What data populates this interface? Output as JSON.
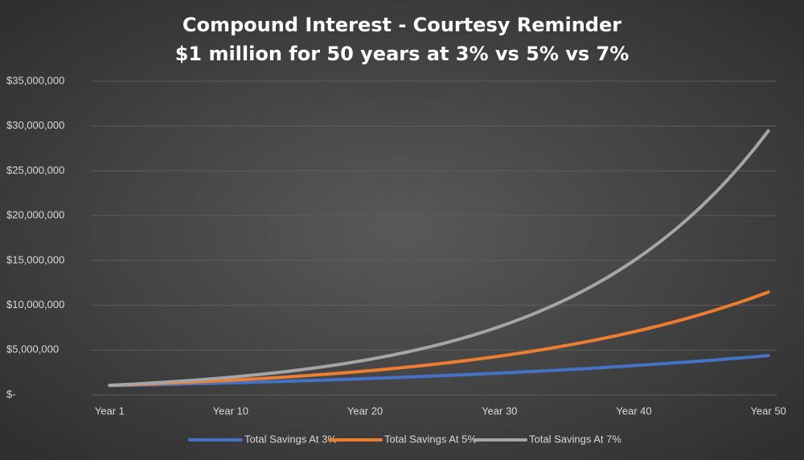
{
  "chart_data": {
    "type": "line",
    "title": "Compound Interest - Courtesy Reminder",
    "subtitle": "$1 million for 50 years at 3% vs 5% vs 7%",
    "categories": [
      "Year 1",
      null,
      null,
      null,
      null,
      null,
      null,
      null,
      null,
      "Year 10",
      null,
      null,
      null,
      null,
      null,
      null,
      null,
      null,
      null,
      "Year 20",
      null,
      null,
      null,
      null,
      null,
      null,
      null,
      null,
      null,
      "Year 30",
      null,
      null,
      null,
      null,
      null,
      null,
      null,
      null,
      null,
      "Year 40",
      null,
      null,
      null,
      null,
      null,
      null,
      null,
      null,
      null,
      "Year 50"
    ],
    "ylim": [
      0,
      35000000
    ],
    "yticks": [
      {
        "value": 0,
        "label": "$-"
      },
      {
        "value": 5000000,
        "label": "$5,000,000"
      },
      {
        "value": 10000000,
        "label": "$10,000,000"
      },
      {
        "value": 15000000,
        "label": "$15,000,000"
      },
      {
        "value": 20000000,
        "label": "$20,000,000"
      },
      {
        "value": 25000000,
        "label": "$25,000,000"
      },
      {
        "value": 30000000,
        "label": "$30,000,000"
      },
      {
        "value": 35000000,
        "label": "$35,000,000"
      }
    ],
    "grid": true,
    "legend": "bottom",
    "series": [
      {
        "name": "Total Savings At 3%",
        "color": "#4472c4",
        "values": [
          1030000,
          1060900,
          1092700,
          1125500,
          1159300,
          1194100,
          1229900,
          1266800,
          1304800,
          1343900,
          1384200,
          1425800,
          1468500,
          1512600,
          1558000,
          1604700,
          1652800,
          1702400,
          1753500,
          1806100,
          1860300,
          1916100,
          1973600,
          2032800,
          2093800,
          2156600,
          2221300,
          2287900,
          2356600,
          2427300,
          2500100,
          2575100,
          2652300,
          2731900,
          2813900,
          2898300,
          2985200,
          3074800,
          3167000,
          3262000,
          3359900,
          3460700,
          3564500,
          3671500,
          3781600,
          3895000,
          4011900,
          4132300,
          4256200,
          4383900
        ]
      },
      {
        "name": "Total Savings At 5%",
        "color": "#ed7d31",
        "values": [
          1050000,
          1102500,
          1157600,
          1215500,
          1276300,
          1340100,
          1407100,
          1477500,
          1551300,
          1628900,
          1710300,
          1795900,
          1885600,
          1979900,
          2078900,
          2182900,
          2292000,
          2406600,
          2527000,
          2653300,
          2786000,
          2925300,
          3071500,
          3225100,
          3386400,
          3555700,
          3733500,
          3920100,
          4116100,
          4321900,
          4538000,
          4764900,
          5003200,
          5253300,
          5516000,
          5791800,
          6081400,
          6385500,
          6704800,
          7040000,
          7392000,
          7761600,
          8149700,
          8557200,
          8985000,
          9434300,
          9906000,
          10401300,
          10921300,
          11467400
        ]
      },
      {
        "name": "Total Savings At 7%",
        "color": "#a5a5a5",
        "values": [
          1070000,
          1144900,
          1225000,
          1310800,
          1402600,
          1500700,
          1605800,
          1718200,
          1838500,
          1967200,
          2104900,
          2252200,
          2409800,
          2578500,
          2759000,
          2952200,
          3158800,
          3379900,
          3616500,
          3869700,
          4140600,
          4430400,
          4740500,
          5072400,
          5427400,
          5807400,
          6213900,
          6648800,
          7114300,
          7612300,
          8145100,
          8715300,
          9325300,
          9978100,
          10676600,
          11423900,
          12223600,
          13079300,
          13994800,
          14974500,
          16022700,
          17144300,
          18344400,
          19628500,
          21002500,
          22472600,
          24045700,
          25728900,
          27529900,
          29457000
        ]
      }
    ]
  }
}
